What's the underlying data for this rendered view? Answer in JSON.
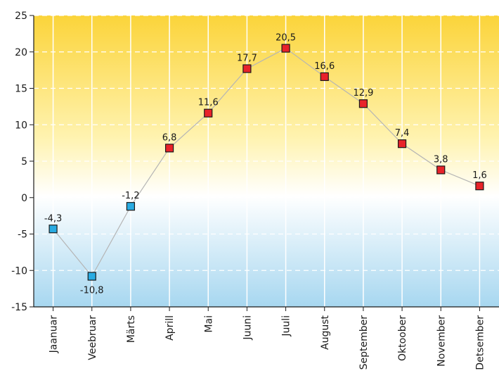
{
  "chart_data": {
    "type": "line",
    "title": "",
    "xlabel": "",
    "ylabel": "",
    "categories": [
      "Jaanuar",
      "Veebruar",
      "Märts",
      "Aprill",
      "Mai",
      "Juuni",
      "Juuli",
      "August",
      "September",
      "Oktoober",
      "November",
      "Detsember"
    ],
    "values": [
      -4.3,
      -10.8,
      -1.2,
      6.8,
      11.6,
      17.7,
      20.5,
      16.6,
      12.9,
      7.4,
      3.8,
      1.6
    ],
    "value_labels": [
      "-4,3",
      "-10,8",
      "-1,2",
      "6,8",
      "11,6",
      "17,7",
      "20,5",
      "16,6",
      "12,9",
      "7,4",
      "3,8",
      "1,6"
    ],
    "ylim": [
      -15,
      25
    ],
    "yticks": [
      "-15",
      "-10",
      "-5",
      "0",
      "5",
      "10",
      "15",
      "20",
      "25"
    ],
    "grid": true,
    "colors": {
      "positive_marker": "#e8232a",
      "negative_marker": "#29abe2",
      "line": "#b5b5b5",
      "warm_top": "#fbd43a",
      "cold_bottom": "#a7d7f0"
    }
  }
}
